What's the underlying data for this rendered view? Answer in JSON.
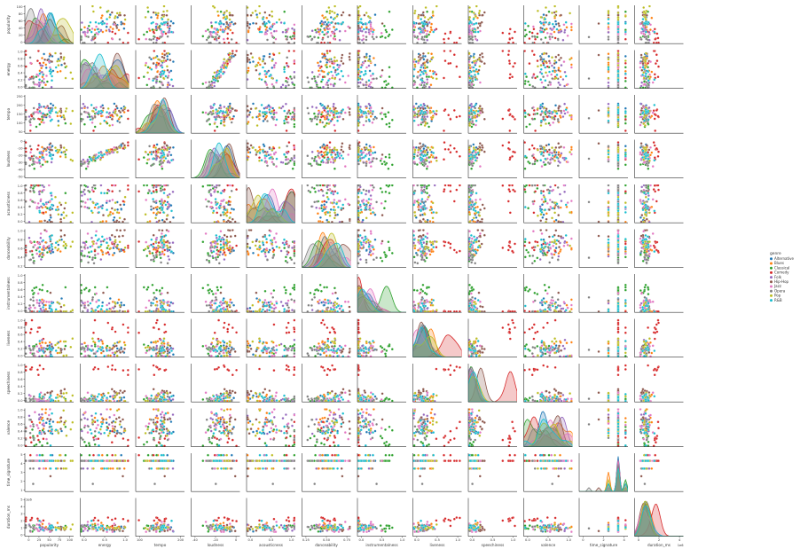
{
  "chart_data": {
    "type": "scatter",
    "kind": "pairplot",
    "hue": "genre",
    "variables": [
      {
        "name": "popularity",
        "ylabel": "popularity",
        "xlabel": "popularity",
        "range": [
          0,
          100
        ],
        "xticks": [
          "0",
          "25",
          "50",
          "75",
          "100"
        ],
        "yticks": [
          "0",
          "20",
          "40",
          "60",
          "80",
          "100"
        ]
      },
      {
        "name": "energy",
        "ylabel": "energy",
        "xlabel": "energy",
        "range": [
          0,
          1
        ],
        "xticks": [
          "0.0",
          "0.5",
          "1.0"
        ],
        "yticks": [
          "0.0",
          "0.2",
          "0.4",
          "0.6",
          "0.8",
          "1.0"
        ]
      },
      {
        "name": "tempo",
        "ylabel": "tempo",
        "xlabel": "tempo",
        "range": [
          30,
          250
        ],
        "xticks": [
          "100",
          "200"
        ],
        "yticks": [
          "50",
          "100",
          "150",
          "200",
          "250"
        ]
      },
      {
        "name": "loudness",
        "ylabel": "loudness",
        "xlabel": "loudness",
        "range": [
          -50,
          5
        ],
        "xticks": [
          "-40",
          "-20",
          "0"
        ],
        "yticks": [
          "-50",
          "-40",
          "-30",
          "-20",
          "-10",
          "0"
        ]
      },
      {
        "name": "acousticness",
        "ylabel": "acousticness",
        "xlabel": "acousticness",
        "range": [
          0,
          1
        ],
        "xticks": [
          "0.0",
          "0.5",
          "1.0"
        ],
        "yticks": [
          "0.0",
          "0.2",
          "0.4",
          "0.6",
          "0.8",
          "1.0"
        ]
      },
      {
        "name": "danceability",
        "ylabel": "danceability",
        "xlabel": "danceability",
        "range": [
          0.1,
          1
        ],
        "xticks": [
          "0.25",
          "0.50",
          "0.75"
        ],
        "yticks": [
          "0.2",
          "0.4",
          "0.6",
          "0.8",
          "1.0"
        ]
      },
      {
        "name": "instrumentalness",
        "ylabel": "instrumentalness",
        "xlabel": "instrumentalness",
        "range": [
          0,
          1
        ],
        "xticks": [
          "0.0",
          "0.5",
          "1.0"
        ],
        "yticks": [
          "0.0",
          "0.2",
          "0.4",
          "0.6",
          "0.8",
          "1.0"
        ]
      },
      {
        "name": "liveness",
        "ylabel": "liveness",
        "xlabel": "liveness",
        "range": [
          0,
          1
        ],
        "xticks": [
          "0.0",
          "0.5",
          "1.0"
        ],
        "yticks": [
          "0.0",
          "0.2",
          "0.4",
          "0.6",
          "0.8",
          "1.0"
        ]
      },
      {
        "name": "speechiness",
        "ylabel": "speechiness",
        "xlabel": "speechiness",
        "range": [
          0,
          1
        ],
        "xticks": [
          "0.0",
          "0.5",
          "1.0"
        ],
        "yticks": [
          "0.0",
          "0.2",
          "0.4",
          "0.6",
          "0.8",
          "1.0"
        ]
      },
      {
        "name": "valence",
        "ylabel": "valence",
        "xlabel": "valence",
        "range": [
          0,
          1
        ],
        "xticks": [
          "0.0",
          "0.5",
          "1.0"
        ],
        "yticks": [
          "0.0",
          "0.2",
          "0.4",
          "0.6",
          "0.8",
          "1.0"
        ]
      },
      {
        "name": "time_signature",
        "ylabel": "time_signature",
        "xlabel": "time_signature",
        "range": [
          0,
          5
        ],
        "xticks": [
          "0",
          "2",
          "4"
        ],
        "yticks": [
          "1",
          "2",
          "3",
          "4",
          "5"
        ]
      },
      {
        "name": "duration_ms",
        "ylabel": "duration_ms",
        "xlabel": "duration_ms",
        "range": [
          0,
          5000000
        ],
        "xticks": [
          "0",
          "2",
          "4"
        ],
        "yticks": [
          "0",
          "1",
          "2",
          "3",
          "4",
          "5"
        ],
        "offset_label": "1e6"
      }
    ],
    "legend": {
      "title": "genre",
      "placement": "right",
      "items": [
        {
          "label": "Alternative",
          "color": "#1f77b4"
        },
        {
          "label": "Blues",
          "color": "#ff7f0e"
        },
        {
          "label": "Classical",
          "color": "#2ca02c"
        },
        {
          "label": "Comedy",
          "color": "#d62728"
        },
        {
          "label": "Folk",
          "color": "#9467bd"
        },
        {
          "label": "Hip-Hop",
          "color": "#8c564b"
        },
        {
          "label": "Jazz",
          "color": "#e377c2"
        },
        {
          "label": "Opera",
          "color": "#7f7f7f"
        },
        {
          "label": "Pop",
          "color": "#bcbd22"
        },
        {
          "label": "R&B",
          "color": "#17becf"
        }
      ]
    }
  }
}
